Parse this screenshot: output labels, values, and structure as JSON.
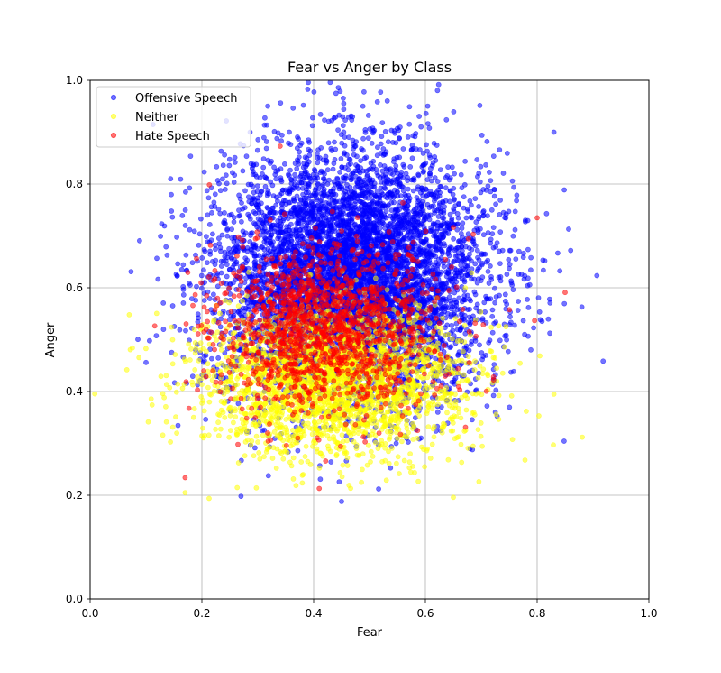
{
  "chart_data": {
    "type": "scatter",
    "title": "Fear vs Anger by Class",
    "xlabel": "Fear",
    "ylabel": "Anger",
    "xlim": [
      0.0,
      1.0
    ],
    "ylim": [
      0.0,
      1.0
    ],
    "xticks": [
      "0.0",
      "0.2",
      "0.4",
      "0.6",
      "0.8",
      "1.0"
    ],
    "yticks": [
      "0.0",
      "0.2",
      "0.4",
      "0.6",
      "0.8",
      "1.0"
    ],
    "grid": true,
    "legend_position": "upper-left",
    "series": [
      {
        "name": "Offensive Speech",
        "color": "#0000ff",
        "alpha": 0.55,
        "count": 6500,
        "center": [
          0.47,
          0.62
        ],
        "spread": [
          0.12,
          0.12
        ],
        "points_sample": [
          [
            0.44,
            0.975
          ],
          [
            0.83,
            0.9
          ],
          [
            0.86,
            0.672
          ],
          [
            0.88,
            0.563
          ],
          [
            0.1,
            0.456
          ],
          [
            0.27,
            0.198
          ],
          [
            0.45,
            0.188
          ],
          [
            0.68,
            0.29
          ]
        ]
      },
      {
        "name": "Neither",
        "color": "#ffff00",
        "alpha": 0.55,
        "count": 2500,
        "center": [
          0.43,
          0.42
        ],
        "spread": [
          0.12,
          0.07
        ],
        "points_sample": [
          [
            0.07,
            0.548
          ],
          [
            0.17,
            0.205
          ],
          [
            0.65,
            0.196
          ],
          [
            0.83,
            0.395
          ],
          [
            0.13,
            0.316
          ]
        ]
      },
      {
        "name": "Hate Speech",
        "color": "#ff0000",
        "alpha": 0.55,
        "count": 1400,
        "center": [
          0.42,
          0.52
        ],
        "spread": [
          0.1,
          0.08
        ],
        "points_sample": [
          [
            0.34,
            0.873
          ],
          [
            0.17,
            0.234
          ],
          [
            0.8,
            0.735
          ],
          [
            0.85,
            0.591
          ],
          [
            0.41,
            0.213
          ]
        ]
      }
    ]
  }
}
